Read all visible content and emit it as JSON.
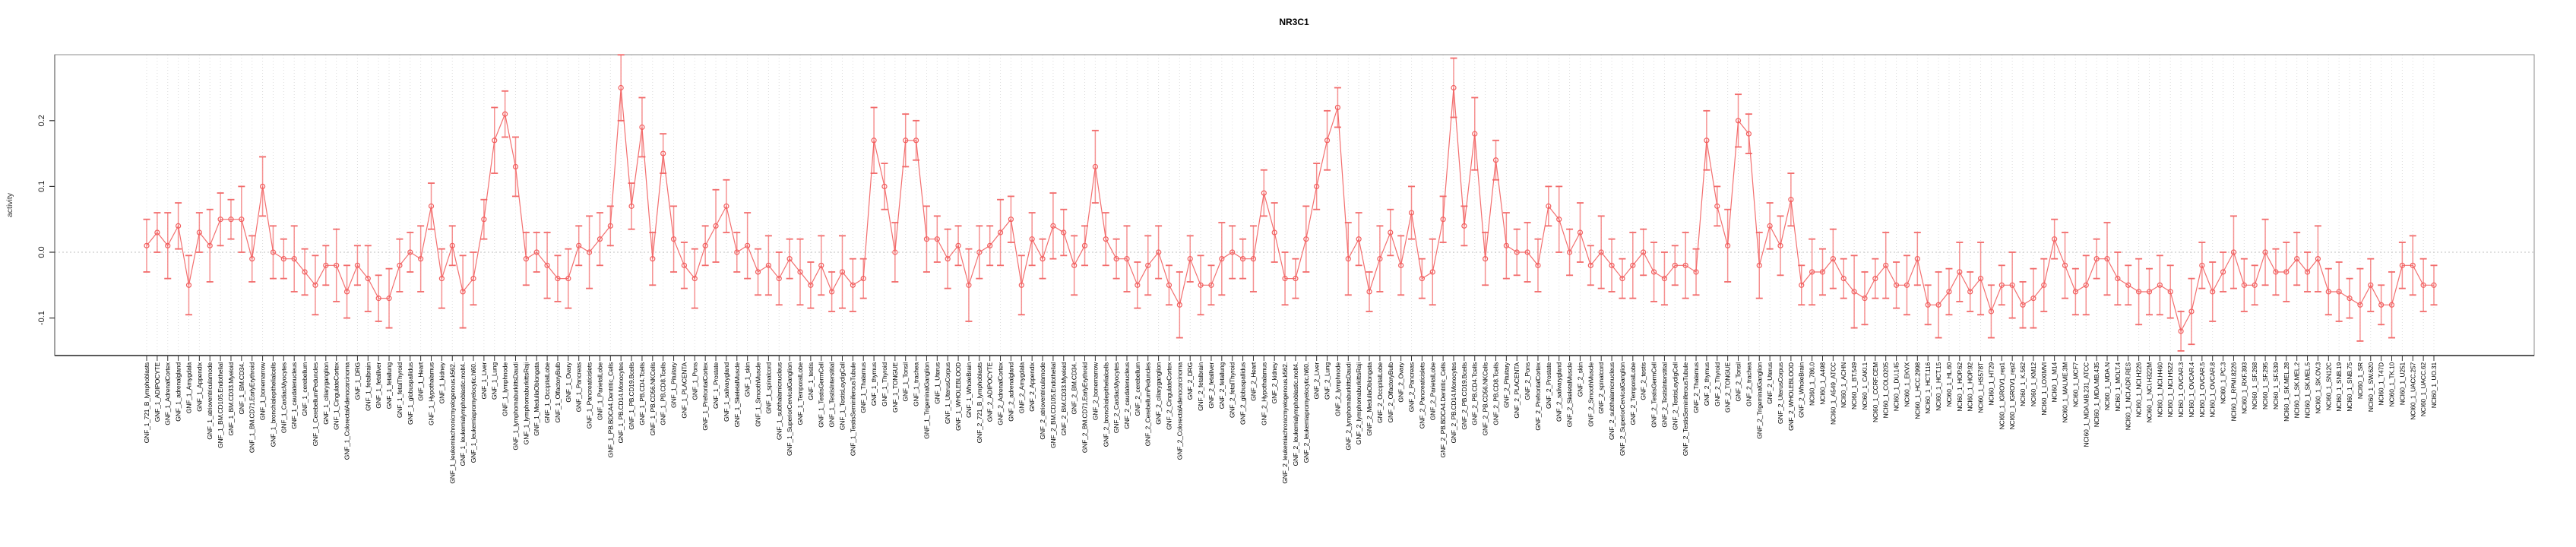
{
  "chart_data": {
    "type": "line",
    "title": "NR3C1",
    "xlabel": "",
    "ylabel": "activity",
    "ylim": [
      -0.157,
      0.3
    ],
    "grid": "vertical-dotted-per-category",
    "legend": "none",
    "zero_line": true,
    "series_color": "#f25f5f",
    "errorbar_color": "#f58080",
    "gridline_color": "#dcdcdc",
    "zeroline_color": "#c0c0c0",
    "box_color": "#8c8c8c",
    "axis_color": "#222222",
    "y_ticks": [
      {
        "label": "-0.1",
        "value": -0.1
      },
      {
        "label": "0.0",
        "value": 0.0
      },
      {
        "label": "0.1",
        "value": 0.1
      },
      {
        "label": "0.2",
        "value": 0.2
      }
    ],
    "categories": [
      "GNF_1_721_B_lymphoblasts",
      "GNF_1_ADIPOCYTE",
      "GNF_1_AdrenalCortex",
      "GNF_1_adrenalgland",
      "GNF_1_Amygdala",
      "GNF_1_Appendix",
      "GNF_1_atrioventricularnode",
      "GNF_1_BM.CD105.Endothelial",
      "GNF_1_BM.CD33.Myeloid",
      "GNF_1_BM.CD34.",
      "GNF_1_BM.CD71.EarlyErythroid",
      "GNF_1_bonemarrow",
      "GNF_1_bronchialepithelialcells",
      "GNF_1_CardiacMyocytes",
      "GNF_1_caudatenucleus",
      "GNF_1_cerebellum",
      "GNF_1_CerebellumPeduncles",
      "GNF_1_ciliaryganglion",
      "GNF_1_CingulateCortex",
      "GNF_1_ColorectalAdenocarcinoma",
      "GNF_1_DRG",
      "GNF_1_fetalbrain",
      "GNF_1_fetalliver",
      "GNF_1_fetallung",
      "GNF_1_fetalThyroid",
      "GNF_1_globuspallidus",
      "GNF_1_Heart",
      "GNF_1_Hypothalamus",
      "GNF_1_kidney",
      "GNF_1_leukemiachronicmyelogenous.k562.",
      "GNF_1_leukemialymphoblastic.molt4.",
      "GNF_1_leukemiapromyelocytic.hl60.",
      "GNF_1_Liver",
      "GNF_1_Lung",
      "GNF_1_lymphnode",
      "GNF_1_lymphomaburkittsDaudi",
      "GNF_1_lymphomaburkittsRaji",
      "GNF_1_MedullaOblongata",
      "GNF_1_OccipitalLobe",
      "GNF_1_OlfactoryBulb",
      "GNF_1_Ovary",
      "GNF_1_Pancreas",
      "GNF_1_Pancreaticislets",
      "GNF_1_ParietalLobe",
      "GNF_1_PB.BDCA4.Dentritic_Cells",
      "GNF_1_PB.CD14.Monocytes",
      "GNF_1_PB.CD19.Bcells",
      "GNF_1_PB.CD4.Tcells",
      "GNF_1_PB.CD56.NKCells",
      "GNF_1_PB.CD8.Tcells",
      "GNF_1_Pituitary",
      "GNF_1_PLACENTA",
      "GNF_1_Pons",
      "GNF_1_PrefrontalCortex",
      "GNF_1_Prostate",
      "GNF_1_salivarygland",
      "GNF_1_SkeletalMuscle",
      "GNF_1_skin",
      "GNF_1_SmoothMuscle",
      "GNF_1_spinalcord",
      "GNF_1_subthalamicnucleus",
      "GNF_1_SuperiorCervicalGanglion",
      "GNF_1_TemporalLobe",
      "GNF_1_testis",
      "GNF_1_TestisGermCell",
      "GNF_1_TestisInterstitial",
      "GNF_1_TestisLeydigCell",
      "GNF_1_TestisSeminiferousTubule",
      "GNF_1_Thalamus",
      "GNF_1_thymus",
      "GNF_1_Thyroid",
      "GNF_1_TONGUE",
      "GNF_1_Tonsil",
      "GNF_1_trachea",
      "GNF_1_TrigeminalGanglion",
      "GNF_1_Uterus",
      "GNF_1_UterusCorpus",
      "GNF_1_WHOLEBLOOD",
      "GNF_1_WholeBrain",
      "GNF_2_721_B_lymphoblasts",
      "GNF_2_ADIPOCYTE",
      "GNF_2_AdrenalCortex",
      "GNF_2_adrenalgland",
      "GNF_2_Amygdala",
      "GNF_2_Appendix",
      "GNF_2_atrioventricularnode",
      "GNF_2_BM.CD105.Endothelial",
      "GNF_2_BM.CD33.Myeloid",
      "GNF_2_BM.CD34.",
      "GNF_2_BM.CD71.EarlyErythroid",
      "GNF_2_bonemarrow",
      "GNF_2_bronchialepithelialcells",
      "GNF_2_CardiacMyocytes",
      "GNF_2_caudatenucleus",
      "GNF_2_cerebellum",
      "GNF_2_CerebellumPeduncles",
      "GNF_2_ciliaryganglion",
      "GNF_2_CingulateCortex",
      "GNF_2_ColorectalAdenocarcinoma",
      "GNF_2_DRG",
      "GNF_2_fetalbrain",
      "GNF_2_fetalliver",
      "GNF_2_fetallung",
      "GNF_2_fetalThyroid",
      "GNF_2_globuspallidus",
      "GNF_2_Heart",
      "GNF_2_Hypothalamus",
      "GNF_2_kidney",
      "GNF_2_leukemiachronicmyelogenous.k562.",
      "GNF_2_leukemialymphoblastic.molt4.",
      "GNF_2_leukemiapromyelocytic.hl60.",
      "GNF_2_Liver",
      "GNF_2_Lung",
      "GNF_2_lymphnode",
      "GNF_2_lymphomaburkittsDaudi",
      "GNF_2_lymphomaburkittsRaji",
      "GNF_2_MedullaOblongata",
      "GNF_2_OccipitalLobe",
      "GNF_2_OlfactoryBulb",
      "GNF_2_Ovary",
      "GNF_2_Pancreas",
      "GNF_2_Pancreaticislets",
      "GNF_2_ParietalLobe",
      "GNF_2_PB.BDCA4.Dentritic_Cells",
      "GNF_2_PB.CD14.Monocytes",
      "GNF_2_PB.CD19.Bcells",
      "GNF_2_PB.CD4.Tcells",
      "GNF_2_PB.CD56.NKCells",
      "GNF_2_PB.CD8.Tcells",
      "GNF_2_Pituitary",
      "GNF_2_PLACENTA",
      "GNF_2_Pons",
      "GNF_2_PrefrontalCortex",
      "GNF_2_Prostate",
      "GNF_2_salivarygland",
      "GNF_2_SkeletalMuscle",
      "GNF_2_skin",
      "GNF_2_SmoothMuscle",
      "GNF_2_spinalcord",
      "GNF_2_subthalamicnucleus",
      "GNF_2_SuperiorCervicalGanglion",
      "GNF_2_TemporalLobe",
      "GNF_2_testis",
      "GNF_2_TestisGermCell",
      "GNF_2_TestisInterstitial",
      "GNF_2_TestisLeydigCell",
      "GNF_2_TestisSeminiferousTubule",
      "GNF_2_Thalamus",
      "GNF_2_thymus",
      "GNF_2_Thyroid",
      "GNF_2_TONGUE",
      "GNF_2_Tonsil",
      "GNF_2_trachea",
      "GNF_2_TrigeminalGanglion",
      "GNF_2_Uterus",
      "GNF_2_UterusCorpus",
      "GNF_2_WHOLEBLOOD",
      "GNF_2_WholeBrain",
      "NCI60_1_786.0",
      "NCI60_1_A498",
      "NCI60_1_A549_ATCC",
      "NCI60_1_ACHN",
      "NCI60_1_BT.549",
      "NCI60_1_CAKI.1",
      "NCI60_1_CCRF.CEM",
      "NCI60_1_COLO205",
      "NCI60_1_DU.145",
      "NCI60_1_EKVX",
      "NCI60_1_HCC.2998",
      "NCI60_1_HCT.116",
      "NCI60_1_HCT.15",
      "NCI60_1_HL.60",
      "NCI60_1_HOP.62",
      "NCI60_1_HOP.92",
      "NCI60_1_HS578T",
      "NCI60_1_HT29",
      "NCI60_1_IGROV1_rep1",
      "NCI60_1_IGROV1_rep2",
      "NCI60_1_K.562",
      "NCI60_1_KM12",
      "NCI60_1_LOXIMVI",
      "NCI60_1_M14",
      "NCI60_1_MALME.3M",
      "NCI60_1_MCF7",
      "NCI60_1_MDA.MB.231_ATCC",
      "NCI60_1_MDA.MB.435",
      "NCI60_1_MDA.N",
      "NCI60_1_MOLT.4",
      "NCI60_1_NCI.ADR.RES",
      "NCI60_1_NCI.H226",
      "NCI60_1_NCI.H322M",
      "NCI60_1_NCI.H460",
      "NCI60_1_NCI.H522",
      "NCI60_1_OVCAR.3",
      "NCI60_1_OVCAR.4",
      "NCI60_1_OVCAR.5",
      "NCI60_1_OVCAR.8",
      "NCI60_1_PC.3",
      "NCI60_1_RPMI.8226",
      "NCI60_1_RXF.393",
      "NCI60_1_SF.268",
      "NCI60_1_SF.295",
      "NCI60_1_SF.539",
      "NCI60_1_SK.MEL.28",
      "NCI60_1_SK.MEL.2",
      "NCI60_1_SK.MEL.5",
      "NCI60_1_SK.OV.3",
      "NCI60_1_SN12C",
      "NCI60_1_SNB.19",
      "NCI60_1_SNB.75",
      "NCI60_1_SR",
      "NCI60_1_SW.620",
      "NCI60_1_T47D",
      "NCI60_1_TK.10",
      "NCI60_1_U251",
      "NCI60_1_UACC.257",
      "NCI60_1_UACC.62",
      "NCI60_1_UO.31"
    ],
    "values": [
      0.01,
      0.03,
      0.01,
      0.04,
      -0.05,
      0.03,
      0.01,
      0.05,
      0.05,
      0.05,
      -0.01,
      0.1,
      0.0,
      -0.01,
      -0.01,
      -0.03,
      -0.05,
      -0.02,
      -0.02,
      -0.06,
      -0.02,
      -0.04,
      -0.07,
      -0.07,
      -0.02,
      0.0,
      -0.01,
      0.07,
      -0.04,
      0.01,
      -0.06,
      -0.04,
      0.05,
      0.17,
      0.21,
      0.13,
      -0.01,
      0.0,
      -0.02,
      -0.04,
      -0.04,
      0.01,
      0.0,
      0.02,
      0.04,
      0.25,
      0.07,
      0.19,
      -0.01,
      0.15,
      0.02,
      -0.02,
      -0.04,
      0.01,
      0.04,
      0.07,
      0.0,
      0.01,
      -0.03,
      -0.02,
      -0.04,
      -0.01,
      -0.03,
      -0.05,
      -0.02,
      -0.06,
      -0.03,
      -0.05,
      -0.04,
      0.17,
      0.1,
      0.0,
      0.17,
      0.17,
      0.02,
      0.02,
      -0.01,
      0.01,
      -0.05,
      0.0,
      0.01,
      0.03,
      0.05,
      -0.05,
      0.02,
      -0.01,
      0.04,
      0.03,
      -0.02,
      0.01,
      0.13,
      0.02,
      -0.01,
      -0.01,
      -0.05,
      -0.02,
      0.0,
      -0.05,
      -0.08,
      -0.01,
      -0.05,
      -0.05,
      -0.01,
      0.0,
      -0.01,
      -0.01,
      0.09,
      0.03,
      -0.04,
      -0.04,
      0.02,
      0.1,
      0.17,
      0.22,
      -0.01,
      0.02,
      -0.06,
      -0.01,
      0.03,
      -0.02,
      0.06,
      -0.04,
      -0.03,
      0.05,
      0.25,
      0.04,
      0.18,
      -0.01,
      0.14,
      0.01,
      0.0,
      0.0,
      -0.02,
      0.07,
      0.05,
      0.0,
      0.03,
      -0.02,
      0.0,
      -0.02,
      -0.04,
      -0.02,
      0.0,
      -0.03,
      -0.04,
      -0.02,
      -0.02,
      -0.03,
      0.17,
      0.07,
      0.01,
      0.2,
      0.18,
      -0.02,
      0.04,
      0.01,
      0.08,
      -0.05,
      -0.03,
      -0.03,
      -0.01,
      -0.04,
      -0.06,
      -0.07,
      -0.04,
      -0.02,
      -0.05,
      -0.05,
      -0.01,
      -0.08,
      -0.08,
      -0.06,
      -0.03,
      -0.06,
      -0.04,
      -0.09,
      -0.05,
      -0.05,
      -0.08,
      -0.07,
      -0.05,
      0.02,
      -0.02,
      -0.06,
      -0.05,
      -0.01,
      -0.01,
      -0.04,
      -0.05,
      -0.06,
      -0.06,
      -0.05,
      -0.06,
      -0.12,
      -0.09,
      -0.02,
      -0.06,
      -0.03,
      0.0,
      -0.05,
      -0.05,
      0.0,
      -0.03,
      -0.03,
      -0.01,
      -0.03,
      -0.01,
      -0.06,
      -0.06,
      -0.07,
      -0.08,
      -0.05,
      -0.08,
      -0.08,
      -0.02,
      -0.02,
      -0.05,
      -0.05
    ],
    "errors": [
      0.04,
      0.03,
      0.05,
      0.035,
      0.045,
      0.03,
      0.055,
      0.04,
      0.03,
      0.05,
      0.035,
      0.045,
      0.04,
      0.03,
      0.05,
      0.035,
      0.045,
      0.03,
      0.055,
      0.04,
      0.03,
      0.05,
      0.035,
      0.045,
      0.04,
      0.03,
      0.05,
      0.035,
      0.045,
      0.03,
      0.055,
      0.04,
      0.03,
      0.05,
      0.035,
      0.045,
      0.04,
      0.03,
      0.05,
      0.035,
      0.045,
      0.03,
      0.055,
      0.04,
      0.03,
      0.05,
      0.035,
      0.045,
      0.04,
      0.03,
      0.05,
      0.035,
      0.045,
      0.03,
      0.055,
      0.04,
      0.03,
      0.05,
      0.035,
      0.045,
      0.04,
      0.03,
      0.05,
      0.035,
      0.045,
      0.03,
      0.055,
      0.04,
      0.03,
      0.05,
      0.035,
      0.045,
      0.04,
      0.03,
      0.05,
      0.035,
      0.045,
      0.03,
      0.055,
      0.04,
      0.03,
      0.05,
      0.035,
      0.045,
      0.04,
      0.03,
      0.05,
      0.035,
      0.045,
      0.03,
      0.055,
      0.04,
      0.03,
      0.05,
      0.035,
      0.045,
      0.04,
      0.03,
      0.05,
      0.035,
      0.045,
      0.03,
      0.055,
      0.04,
      0.03,
      0.05,
      0.035,
      0.045,
      0.04,
      0.03,
      0.05,
      0.035,
      0.045,
      0.03,
      0.055,
      0.04,
      0.03,
      0.05,
      0.035,
      0.045,
      0.04,
      0.03,
      0.05,
      0.035,
      0.045,
      0.03,
      0.055,
      0.04,
      0.03,
      0.05,
      0.035,
      0.045,
      0.04,
      0.03,
      0.05,
      0.035,
      0.045,
      0.03,
      0.055,
      0.04,
      0.03,
      0.05,
      0.035,
      0.045,
      0.04,
      0.03,
      0.05,
      0.035,
      0.045,
      0.03,
      0.055,
      0.04,
      0.03,
      0.05,
      0.035,
      0.045,
      0.04,
      0.03,
      0.05,
      0.035,
      0.045,
      0.03,
      0.055,
      0.04,
      0.03,
      0.05,
      0.035,
      0.045,
      0.04,
      0.03,
      0.05,
      0.035,
      0.045,
      0.03,
      0.055,
      0.04,
      0.03,
      0.05,
      0.035,
      0.045,
      0.04,
      0.03,
      0.05,
      0.035,
      0.045,
      0.03,
      0.055,
      0.04,
      0.03,
      0.05,
      0.035,
      0.045,
      0.04,
      0.03,
      0.05,
      0.035,
      0.045,
      0.03,
      0.055,
      0.04,
      0.03,
      0.05,
      0.035,
      0.045,
      0.04,
      0.03,
      0.05,
      0.035,
      0.045,
      0.03,
      0.055,
      0.04,
      0.03,
      0.05,
      0.035,
      0.045,
      0.04,
      0.03
    ]
  }
}
